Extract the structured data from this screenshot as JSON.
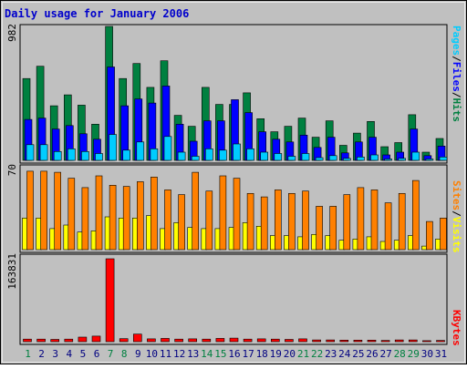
{
  "chart_data": [
    {
      "type": "bar",
      "title": "Daily usage for January 2006",
      "panel": "pages-files-hits",
      "ymax_label": "982",
      "ylim": [
        0,
        982
      ],
      "legend": [
        {
          "label": "Pages",
          "color": "#00ccff"
        },
        {
          "label": "/",
          "color": "#000000"
        },
        {
          "label": "Files",
          "color": "#0000ff"
        },
        {
          "label": "/",
          "color": "#000000"
        },
        {
          "label": "Hits",
          "color": "#008040"
        }
      ],
      "categories": [
        "1",
        "2",
        "3",
        "4",
        "5",
        "6",
        "7",
        "8",
        "9",
        "10",
        "11",
        "12",
        "13",
        "14",
        "15",
        "16",
        "17",
        "18",
        "19",
        "20",
        "21",
        "22",
        "23",
        "24",
        "25",
        "26",
        "27",
        "28",
        "29",
        "30",
        "31"
      ],
      "weekend_days": [
        "1",
        "7",
        "8",
        "14",
        "15",
        "21",
        "22",
        "28",
        "29"
      ],
      "series": [
        {
          "name": "Hits",
          "color": "#008040",
          "values": [
            600,
            690,
            400,
            480,
            405,
            265,
            982,
            600,
            710,
            535,
            730,
            330,
            250,
            535,
            410,
            410,
            495,
            305,
            210,
            250,
            310,
            170,
            290,
            110,
            200,
            285,
            100,
            130,
            335,
            60,
            160
          ]
        },
        {
          "name": "Files",
          "color": "#0000ff",
          "values": [
            300,
            310,
            230,
            255,
            195,
            155,
            685,
            400,
            450,
            420,
            545,
            265,
            140,
            290,
            290,
            445,
            350,
            210,
            155,
            135,
            185,
            95,
            170,
            55,
            135,
            170,
            40,
            60,
            230,
            35,
            105
          ]
        },
        {
          "name": "Pages",
          "color": "#00ccff",
          "values": [
            115,
            115,
            65,
            85,
            65,
            50,
            190,
            75,
            135,
            85,
            175,
            60,
            30,
            85,
            75,
            120,
            85,
            60,
            50,
            30,
            50,
            20,
            35,
            15,
            25,
            40,
            10,
            15,
            60,
            10,
            25
          ]
        }
      ]
    },
    {
      "type": "bar",
      "panel": "sites-visits",
      "ymax_label": "70",
      "ylim": [
        0,
        70
      ],
      "legend": [
        {
          "label": "Sites",
          "color": "#ff8000"
        },
        {
          "label": "/",
          "color": "#000000"
        },
        {
          "label": "Visits",
          "color": "#ffff00"
        }
      ],
      "series": [
        {
          "name": "Visits",
          "color": "#ffff00",
          "values": [
            27,
            27,
            18,
            21,
            15,
            16,
            28,
            27,
            27,
            29,
            18,
            23,
            19,
            18,
            18,
            19,
            23,
            20,
            12,
            12,
            11,
            13,
            12,
            8,
            9,
            11,
            7,
            8,
            12,
            3,
            9
          ]
        },
        {
          "name": "Sites",
          "color": "#ff8000",
          "values": [
            67,
            67,
            66,
            61,
            53,
            63,
            55,
            54,
            58,
            62,
            51,
            47,
            66,
            50,
            63,
            61,
            48,
            45,
            51,
            48,
            50,
            37,
            37,
            47,
            53,
            51,
            40,
            48,
            59,
            24,
            27
          ]
        }
      ]
    },
    {
      "type": "bar",
      "panel": "kbytes",
      "ymax_label": "163831",
      "ylim": [
        0,
        163831
      ],
      "legend": [
        {
          "label": "KBytes",
          "color": "#ff0000"
        }
      ],
      "series": [
        {
          "name": "KBytes",
          "color": "#ff0000",
          "values": [
            5000,
            5000,
            4500,
            5000,
            9000,
            11000,
            163831,
            6000,
            15000,
            5500,
            6500,
            5000,
            5500,
            5000,
            6500,
            7000,
            5000,
            5500,
            5000,
            4500,
            5500,
            3500,
            3500,
            3000,
            3000,
            3000,
            2500,
            3500,
            3500,
            2000,
            2500
          ]
        }
      ]
    }
  ]
}
